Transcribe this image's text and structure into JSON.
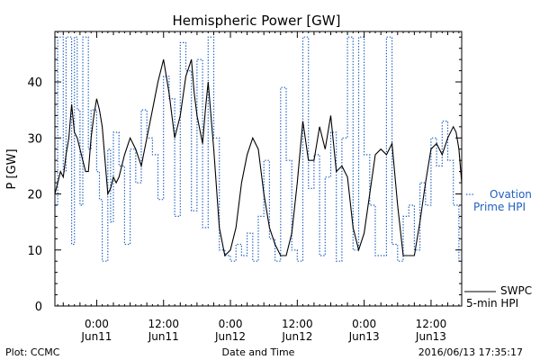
{
  "chart_data": {
    "type": "line",
    "title": "Hemispheric Power [GW]",
    "ylabel": "P [GW]",
    "xlabel": "Date and Time",
    "ylim": [
      0,
      49
    ],
    "xlim": [
      "2016-06-10T16:30",
      "2016-06-13T17:30"
    ],
    "grid": false,
    "yticks": [
      0,
      10,
      20,
      30,
      40
    ],
    "xticks": [
      {
        "at": "2016-06-11T00:00",
        "time": "0:00",
        "date": "Jun11"
      },
      {
        "at": "2016-06-11T12:00",
        "time": "12:00",
        "date": "Jun11"
      },
      {
        "at": "2016-06-12T00:00",
        "time": "0:00",
        "date": "Jun12"
      },
      {
        "at": "2016-06-12T12:00",
        "time": "12:00",
        "date": "Jun12"
      },
      {
        "at": "2016-06-13T00:00",
        "time": "0:00",
        "date": "Jun13"
      },
      {
        "at": "2016-06-13T12:00",
        "time": "12:00",
        "date": "Jun13"
      }
    ],
    "series": [
      {
        "name": "Ovation Prime HPI",
        "style": "dotted",
        "color": "#1f5fbf",
        "x": [
          "2016-06-10T16:30",
          "2016-06-10T17:00",
          "2016-06-10T18:00",
          "2016-06-10T18:30",
          "2016-06-10T19:30",
          "2016-06-10T20:00",
          "2016-06-10T20:30",
          "2016-06-10T21:00",
          "2016-06-10T21:30",
          "2016-06-10T22:30",
          "2016-06-10T23:00",
          "2016-06-11T00:00",
          "2016-06-11T00:30",
          "2016-06-11T01:00",
          "2016-06-11T02:00",
          "2016-06-11T02:30",
          "2016-06-11T03:00",
          "2016-06-11T04:00",
          "2016-06-11T05:00",
          "2016-06-11T06:00",
          "2016-06-11T07:00",
          "2016-06-11T08:00",
          "2016-06-11T09:00",
          "2016-06-11T10:00",
          "2016-06-11T11:00",
          "2016-06-11T12:00",
          "2016-06-11T13:00",
          "2016-06-11T14:00",
          "2016-06-11T15:00",
          "2016-06-11T16:00",
          "2016-06-11T17:00",
          "2016-06-11T18:00",
          "2016-06-11T19:00",
          "2016-06-11T20:00",
          "2016-06-11T21:00",
          "2016-06-11T22:00",
          "2016-06-11T23:00",
          "2016-06-12T00:00",
          "2016-06-12T01:00",
          "2016-06-12T02:00",
          "2016-06-12T03:00",
          "2016-06-12T04:00",
          "2016-06-12T05:00",
          "2016-06-12T06:00",
          "2016-06-12T07:00",
          "2016-06-12T08:00",
          "2016-06-12T09:00",
          "2016-06-12T10:00",
          "2016-06-12T11:00",
          "2016-06-12T12:00",
          "2016-06-12T13:00",
          "2016-06-12T14:00",
          "2016-06-12T15:00",
          "2016-06-12T16:00",
          "2016-06-12T17:00",
          "2016-06-12T18:00",
          "2016-06-12T19:00",
          "2016-06-12T20:00",
          "2016-06-12T21:00",
          "2016-06-12T22:00",
          "2016-06-12T23:00",
          "2016-06-13T00:00",
          "2016-06-13T01:00",
          "2016-06-13T02:00",
          "2016-06-13T03:00",
          "2016-06-13T04:00",
          "2016-06-13T05:00",
          "2016-06-13T06:00",
          "2016-06-13T07:00",
          "2016-06-13T08:00",
          "2016-06-13T09:00",
          "2016-06-13T10:00",
          "2016-06-13T11:00",
          "2016-06-13T12:00",
          "2016-06-13T13:00",
          "2016-06-13T14:00",
          "2016-06-13T15:00",
          "2016-06-13T16:00",
          "2016-06-13T17:00"
        ],
        "y": [
          18,
          48,
          24,
          48,
          11,
          48,
          35,
          18,
          48,
          28,
          35,
          24,
          19,
          8,
          28,
          15,
          31,
          25,
          11,
          28,
          22,
          35,
          30,
          27,
          19,
          41,
          37,
          16,
          47,
          42,
          17,
          44,
          14,
          48,
          30,
          10,
          9,
          8,
          11,
          9,
          13,
          8,
          16,
          26,
          12,
          8,
          39,
          26,
          10,
          8,
          48,
          21,
          27,
          9,
          23,
          31,
          8,
          30,
          48,
          10,
          48,
          27,
          18,
          9,
          9,
          48,
          11,
          8,
          16,
          18,
          10,
          22,
          18,
          30,
          25,
          33,
          26,
          18,
          8
        ]
      },
      {
        "name": "SWPC 5-min HPI",
        "style": "solid",
        "color": "#000000",
        "x": [
          "2016-06-10T16:30",
          "2016-06-10T17:00",
          "2016-06-10T17:30",
          "2016-06-10T18:00",
          "2016-06-10T18:30",
          "2016-06-10T19:00",
          "2016-06-10T19:30",
          "2016-06-10T20:00",
          "2016-06-10T20:30",
          "2016-06-10T21:00",
          "2016-06-10T21:30",
          "2016-06-10T22:00",
          "2016-06-10T22:30",
          "2016-06-10T23:00",
          "2016-06-10T23:30",
          "2016-06-11T00:00",
          "2016-06-11T00:30",
          "2016-06-11T01:00",
          "2016-06-11T01:30",
          "2016-06-11T02:00",
          "2016-06-11T02:30",
          "2016-06-11T03:00",
          "2016-06-11T03:30",
          "2016-06-11T04:00",
          "2016-06-11T05:00",
          "2016-06-11T06:00",
          "2016-06-11T07:00",
          "2016-06-11T08:00",
          "2016-06-11T09:00",
          "2016-06-11T10:00",
          "2016-06-11T11:00",
          "2016-06-11T12:00",
          "2016-06-11T13:00",
          "2016-06-11T14:00",
          "2016-06-11T15:00",
          "2016-06-11T16:00",
          "2016-06-11T17:00",
          "2016-06-11T17:30",
          "2016-06-11T18:00",
          "2016-06-11T19:00",
          "2016-06-11T19:30",
          "2016-06-11T20:00",
          "2016-06-11T21:00",
          "2016-06-11T22:00",
          "2016-06-11T23:00",
          "2016-06-12T00:00",
          "2016-06-12T01:00",
          "2016-06-12T02:00",
          "2016-06-12T03:00",
          "2016-06-12T04:00",
          "2016-06-12T05:00",
          "2016-06-12T06:00",
          "2016-06-12T07:00",
          "2016-06-12T08:00",
          "2016-06-12T09:00",
          "2016-06-12T10:00",
          "2016-06-12T11:00",
          "2016-06-12T12:00",
          "2016-06-12T13:00",
          "2016-06-12T14:00",
          "2016-06-12T15:00",
          "2016-06-12T16:00",
          "2016-06-12T17:00",
          "2016-06-12T18:00",
          "2016-06-12T19:00",
          "2016-06-12T20:00",
          "2016-06-12T21:00",
          "2016-06-12T22:00",
          "2016-06-12T23:00",
          "2016-06-13T00:00",
          "2016-06-13T01:00",
          "2016-06-13T02:00",
          "2016-06-13T03:00",
          "2016-06-13T04:00",
          "2016-06-13T05:00",
          "2016-06-13T06:00",
          "2016-06-13T07:00",
          "2016-06-13T08:00",
          "2016-06-13T09:00",
          "2016-06-13T10:00",
          "2016-06-13T11:00",
          "2016-06-13T12:00",
          "2016-06-13T13:00",
          "2016-06-13T14:00",
          "2016-06-13T15:00",
          "2016-06-13T16:00",
          "2016-06-13T16:30",
          "2016-06-13T17:00",
          "2016-06-13T17:30"
        ],
        "y": [
          20,
          22,
          24,
          23,
          27,
          30,
          36,
          31,
          30,
          28,
          26,
          24,
          24,
          30,
          34,
          37,
          35,
          32,
          26,
          20,
          21,
          23,
          22,
          23,
          27,
          30,
          28,
          25,
          30,
          35,
          40,
          44,
          38,
          30,
          34,
          41,
          44,
          38,
          34,
          29,
          35,
          40,
          28,
          14,
          9,
          10,
          14,
          22,
          27,
          30,
          28,
          20,
          14,
          11,
          9,
          9,
          13,
          22,
          33,
          26,
          26,
          32,
          28,
          34,
          24,
          25,
          23,
          14,
          10,
          13,
          20,
          27,
          28,
          27,
          29,
          18,
          9,
          9,
          9,
          15,
          22,
          28,
          29,
          27,
          30,
          32,
          31,
          28,
          22
        ]
      }
    ],
    "legend": {
      "placement": "right",
      "ovation_line1": "Ovation",
      "ovation_line2": "Prime HPI",
      "swpc_line1": "SWPC",
      "swpc_line2": "5-min HPI"
    }
  },
  "footer": {
    "left": "Plot: CCMC",
    "center": "Date and Time",
    "right": "2016/06/13 17:35:17"
  }
}
